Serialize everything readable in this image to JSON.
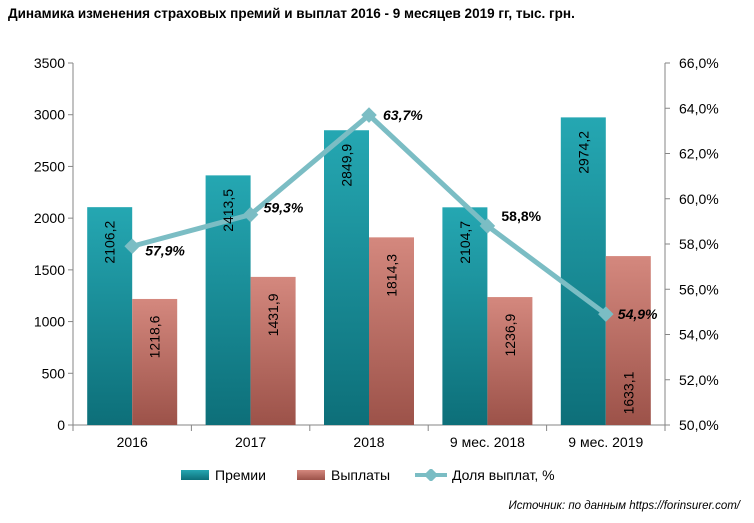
{
  "chart_data": {
    "type": "bar",
    "title": "Динамика изменения страховых премий и выплат 2016 - 9 месяцев 2019 гг, тыс. грн.",
    "categories": [
      "2016",
      "2017",
      "2018",
      "9 мес. 2018",
      "9 мес. 2019"
    ],
    "series": [
      {
        "name": "Премии",
        "type": "bar",
        "axis": "left",
        "values": [
          2106.2,
          2413.5,
          2849.9,
          2104.7,
          2974.2
        ],
        "labels": [
          "2106,2",
          "2413,5",
          "2849,9",
          "2104,7",
          "2974,2"
        ],
        "color": "#1e9aa6"
      },
      {
        "name": "Выплаты",
        "type": "bar",
        "axis": "left",
        "values": [
          1218.6,
          1431.9,
          1814.3,
          1236.9,
          1633.1
        ],
        "labels": [
          "1218,6",
          "1431,9",
          "1814,3",
          "1236,9",
          "1633,1"
        ],
        "color": "#c8776d"
      },
      {
        "name": "Доля выплат, %",
        "type": "line",
        "axis": "right",
        "values": [
          57.9,
          59.3,
          63.7,
          58.8,
          54.9
        ],
        "labels": [
          "57,9%",
          "59,3%",
          "63,7%",
          "58,8%",
          "54,9%"
        ],
        "color": "#7bbdc4"
      }
    ],
    "y_left": {
      "min": 0,
      "max": 3500,
      "ticks": [
        "0",
        "500",
        "1000",
        "1500",
        "2000",
        "2500",
        "3000",
        "3500"
      ]
    },
    "y_right": {
      "min": 50,
      "max": 66,
      "ticks": [
        "50,0%",
        "52,0%",
        "54,0%",
        "56,0%",
        "58,0%",
        "60,0%",
        "62,0%",
        "64,0%",
        "66,0%"
      ]
    },
    "grid": false,
    "legend": "bottom"
  },
  "source_text": "Источник: по данным https://forinsurer.com/"
}
